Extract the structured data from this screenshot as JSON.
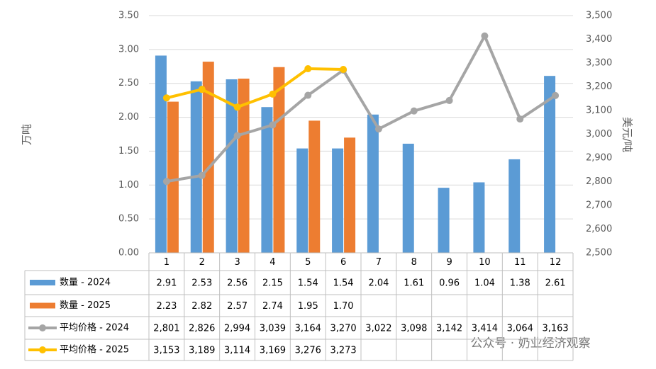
{
  "chart_data": {
    "type": "bar-line",
    "y_label": "万吨",
    "y2_label": "美元/吨",
    "categories": [
      "1",
      "2",
      "3",
      "4",
      "5",
      "6",
      "7",
      "8",
      "9",
      "10",
      "11",
      "12"
    ],
    "series": [
      {
        "name": "数量 - 2024",
        "type": "bar",
        "color": "#5b9bd5",
        "values": [
          2.91,
          2.53,
          2.56,
          2.15,
          1.54,
          1.54,
          2.04,
          1.61,
          0.96,
          1.04,
          1.38,
          2.61
        ],
        "value_labels": [
          "2.91",
          "2.53",
          "2.56",
          "2.15",
          "1.54",
          "1.54",
          "2.04",
          "1.61",
          "0.96",
          "1.04",
          "1.38",
          "2.61"
        ]
      },
      {
        "name": "数量 - 2025",
        "type": "bar",
        "color": "#ed7d31",
        "values": [
          2.23,
          2.82,
          2.57,
          2.74,
          1.95,
          1.7,
          null,
          null,
          null,
          null,
          null,
          null
        ],
        "value_labels": [
          "2.23",
          "2.82",
          "2.57",
          "2.74",
          "1.95",
          "1.70",
          null,
          null,
          null,
          null,
          null,
          null
        ]
      },
      {
        "name": "平均价格 - 2024",
        "type": "line",
        "axis": "y2",
        "color": "#a5a5a5",
        "values": [
          2801,
          2826,
          2994,
          3039,
          3164,
          3270,
          3022,
          3098,
          3142,
          3414,
          3064,
          3163
        ],
        "value_labels": [
          "2,801",
          "2,826",
          "2,994",
          "3,039",
          "3,164",
          "3,270",
          "3,022",
          "3,098",
          "3,142",
          "3,414",
          "3,064",
          "3,163"
        ]
      },
      {
        "name": "平均价格 - 2025",
        "type": "line",
        "axis": "y2",
        "color": "#ffc000",
        "values": [
          3153,
          3189,
          3114,
          3169,
          3276,
          3273,
          null,
          null,
          null,
          null,
          null,
          null
        ],
        "value_labels": [
          "3,153",
          "3,189",
          "3,114",
          "3,169",
          "3,276",
          "3,273",
          null,
          null,
          null,
          null,
          null,
          null
        ]
      }
    ],
    "ylim": [
      0,
      3.5
    ],
    "yticks": [
      {
        "value": 0,
        "label": "0.00"
      },
      {
        "value": 0.5,
        "label": "0.50"
      },
      {
        "value": 1,
        "label": "1.00"
      },
      {
        "value": 1.5,
        "label": "1.50"
      },
      {
        "value": 2,
        "label": "2.00"
      },
      {
        "value": 2.5,
        "label": "2.50"
      },
      {
        "value": 3,
        "label": "3.00"
      },
      {
        "value": 3.5,
        "label": "3.50"
      }
    ],
    "y2lim": [
      2500,
      3500
    ],
    "y2ticks": [
      {
        "value": 2500,
        "label": "2,500"
      },
      {
        "value": 2600,
        "label": "2,600"
      },
      {
        "value": 2700,
        "label": "2,700"
      },
      {
        "value": 2800,
        "label": "2,800"
      },
      {
        "value": 2900,
        "label": "2,900"
      },
      {
        "value": 3000,
        "label": "3,000"
      },
      {
        "value": 3100,
        "label": "3,100"
      },
      {
        "value": 3200,
        "label": "3,200"
      },
      {
        "value": 3300,
        "label": "3,300"
      },
      {
        "value": 3400,
        "label": "3,400"
      },
      {
        "value": 3500,
        "label": "3,500"
      }
    ],
    "grid": true,
    "watermark": "公众号 · 奶业经济观察"
  }
}
